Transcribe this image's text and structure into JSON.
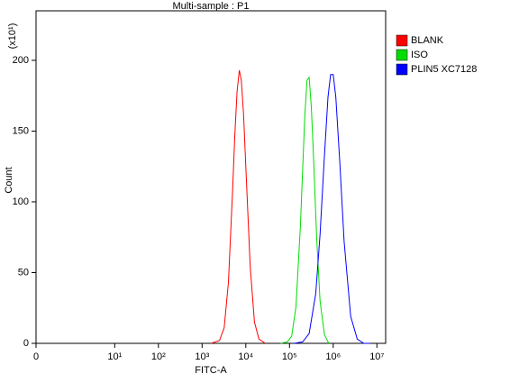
{
  "chart_data": {
    "type": "line",
    "title": "Multi-sample : P1",
    "x_label": "FITC-A",
    "y_label": "Count",
    "y_unit": "(x10¹)",
    "xscale": "log",
    "legend": "right",
    "xlim": [
      0,
      10000000
    ],
    "xticks": [
      0,
      {
        "value": 10,
        "label": "10¹"
      },
      {
        "value": 100,
        "label": "10²"
      },
      {
        "value": 1000,
        "label": "10³"
      },
      {
        "value": 10000,
        "label": "10⁴"
      },
      {
        "value": 100000,
        "label": "10⁵"
      },
      {
        "value": 1000000,
        "label": "10⁶"
      },
      {
        "value": 10000000,
        "label": "10⁷"
      }
    ],
    "ylim": [
      0,
      235
    ],
    "yticks": [
      0,
      50,
      100,
      150,
      200
    ],
    "series": [
      {
        "name": "BLANK",
        "color": "#ff0000",
        "x": [
          1600,
          2500,
          3200,
          4000,
          5000,
          5600,
          6300,
          7100,
          7900,
          8900,
          10000,
          12600,
          15800,
          20000,
          28000
        ],
        "values": [
          0,
          2,
          11,
          43,
          109,
          147,
          178,
          193,
          186,
          162,
          125,
          54,
          15,
          3,
          0
        ]
      },
      {
        "name": "ISO",
        "color": "#00dd00",
        "x": [
          63000,
          89000,
          112000,
          141000,
          178000,
          200000,
          224000,
          251000,
          282000,
          316000,
          355000,
          417000,
          501000,
          631000,
          794000
        ],
        "values": [
          0,
          1,
          5,
          26,
          83,
          123,
          161,
          186,
          188,
          167,
          131,
          75,
          30,
          6,
          0
        ]
      },
      {
        "name": "PLIN5 XC7128",
        "color": "#0000ff",
        "x": [
          126000,
          200000,
          282000,
          398000,
          501000,
          631000,
          759000,
          871000,
          1000000,
          1148000,
          1413000,
          1778000,
          2512000,
          3548000,
          5012000,
          7079000
        ],
        "values": [
          0,
          1,
          7,
          35,
          77,
          133,
          174,
          190,
          190,
          174,
          128,
          72,
          19,
          3,
          0,
          0
        ]
      }
    ]
  }
}
